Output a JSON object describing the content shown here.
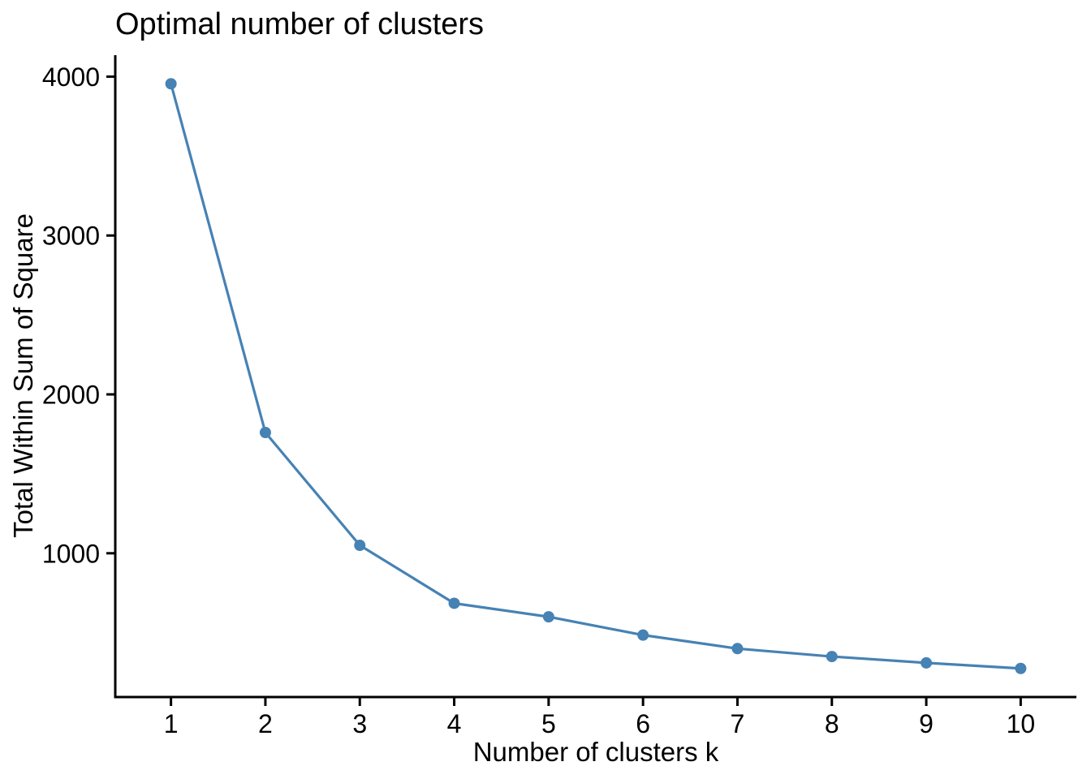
{
  "chart_data": {
    "type": "line",
    "title": "Optimal number of clusters",
    "xlabel": "Number of clusters k",
    "ylabel": "Total Within Sum of Square",
    "x": [
      1,
      2,
      3,
      4,
      5,
      6,
      7,
      8,
      9,
      10
    ],
    "values": [
      3955,
      1760,
      1050,
      685,
      600,
      485,
      400,
      350,
      310,
      275
    ],
    "series_name": "Total within sum of square",
    "x_ticks": [
      "1",
      "2",
      "3",
      "4",
      "5",
      "6",
      "7",
      "8",
      "9",
      "10"
    ],
    "y_ticks": [
      "1000",
      "2000",
      "3000",
      "4000"
    ],
    "y_tick_values": [
      1000,
      2000,
      3000,
      4000
    ],
    "xlim": [
      0.41,
      10.59
    ],
    "ylim": [
      95,
      4135
    ],
    "grid": false,
    "legend": false,
    "line_color": "#4682B4",
    "point_color": "#4682B4",
    "axis_color": "#000000",
    "text_color": "#000000",
    "background": "#FFFFFF",
    "marker": "circle"
  }
}
